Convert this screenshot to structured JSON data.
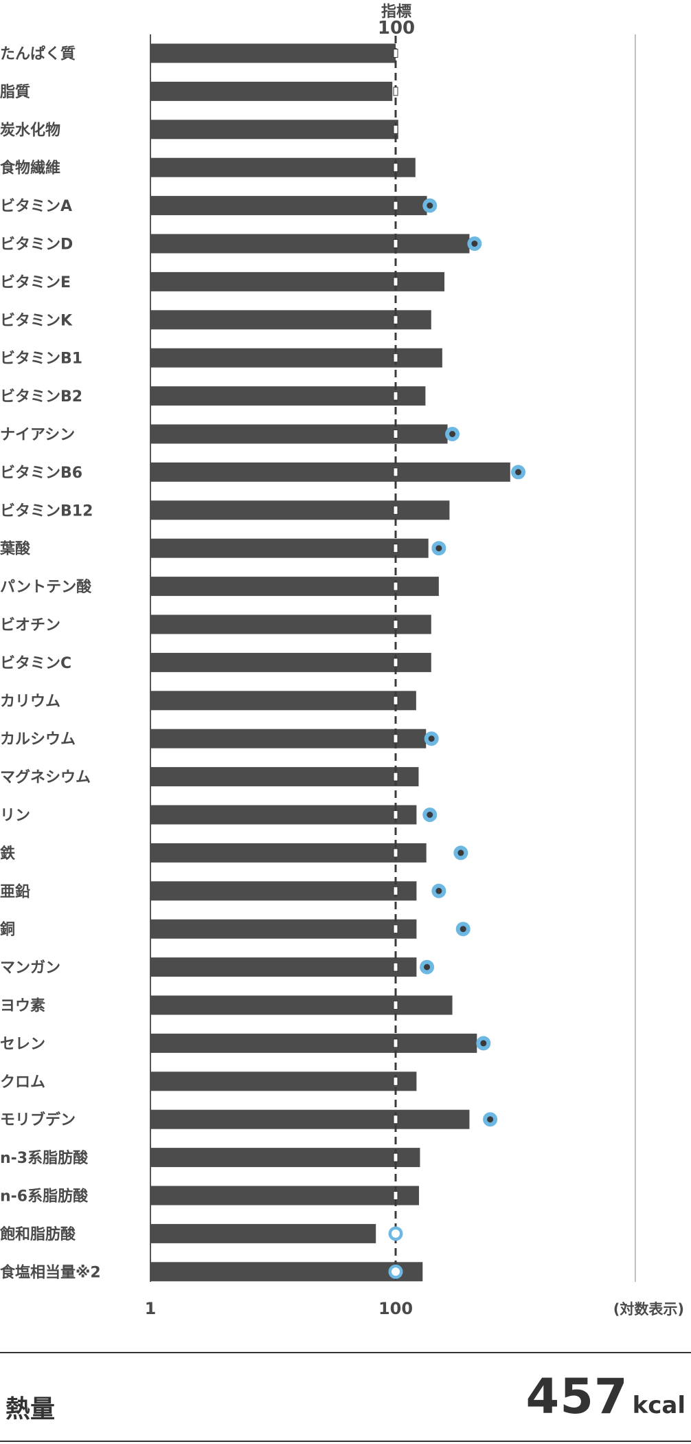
{
  "chart_data": {
    "type": "bar",
    "orientation": "horizontal",
    "scale": "log",
    "categories": [
      "たんぱく質",
      "脂質",
      "炭水化物",
      "食物繊維",
      "ビタミンA",
      "ビタミンD",
      "ビタミンE",
      "ビタミンK",
      "ビタミンB1",
      "ビタミンB2",
      "ナイアシン",
      "ビタミンB6",
      "ビタミンB12",
      "葉酸",
      "パントテン酸",
      "ビオチン",
      "ビタミンC",
      "カリウム",
      "カルシウム",
      "マグネシウム",
      "リン",
      "鉄",
      "亜鉛",
      "銅",
      "マンガン",
      "ヨウ素",
      "セレン",
      "クロム",
      "モリブデン",
      "n-3系脂肪酸",
      "n-6系脂肪酸",
      "飽和脂肪酸",
      "食塩相当量※2"
    ],
    "series": [
      {
        "values": [
          100,
          94,
          105,
          145,
          180,
          400,
          250,
          195,
          240,
          175,
          265,
          860,
          275,
          185,
          225,
          195,
          195,
          147,
          177,
          154,
          148,
          178,
          148,
          148,
          148,
          290,
          460,
          148,
          400,
          158,
          155,
          69,
          166
        ]
      },
      {
        "values": [
          null,
          null,
          null,
          null,
          190,
          440,
          null,
          null,
          null,
          null,
          290,
          1000,
          null,
          225,
          null,
          null,
          null,
          null,
          196,
          null,
          190,
          340,
          225,
          355,
          180,
          null,
          520,
          null,
          590,
          null,
          null,
          100,
          100
        ]
      }
    ],
    "reference": {
      "label": "指標",
      "value": 100
    },
    "ticks": [
      1,
      100
    ],
    "tick_labels": [
      "1",
      "100"
    ],
    "xlim": [
      1,
      9000
    ],
    "scale_note": "(対数表示)"
  },
  "energy": {
    "label": "熱量",
    "value": "457",
    "unit": "kcal"
  },
  "colors": {
    "bar": "#4c4c4c",
    "marker_ring": "#6cb8e3",
    "marker_dot": "#3a3a3a",
    "reference_line": "#3a3a3a",
    "axis": "#555555"
  }
}
